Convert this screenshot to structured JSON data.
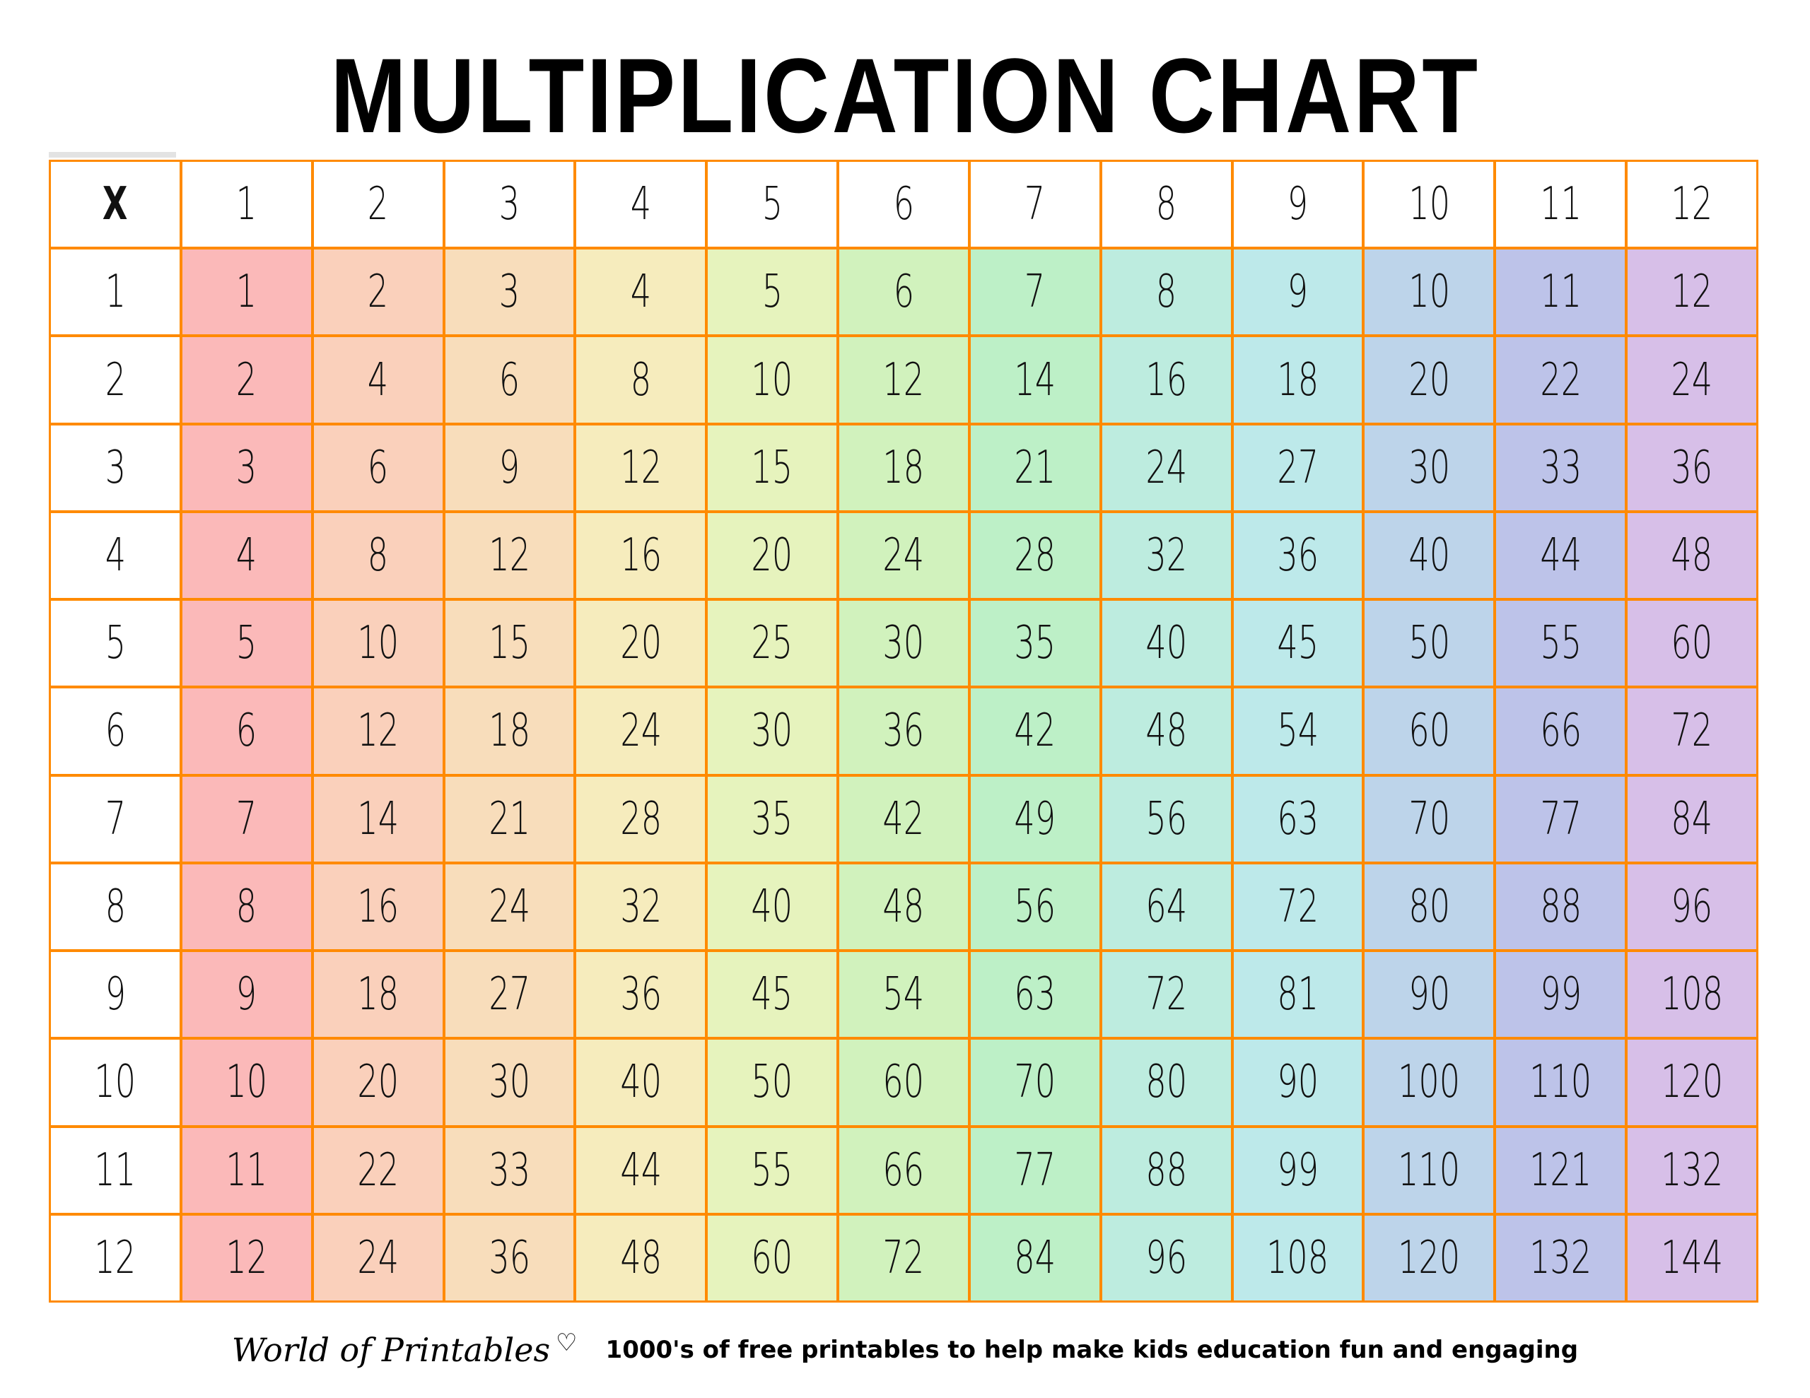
{
  "title": "MULTIPLICATION CHART",
  "header_corner": "X",
  "column_headers": [
    "1",
    "2",
    "3",
    "4",
    "5",
    "6",
    "7",
    "8",
    "9",
    "10",
    "11",
    "12"
  ],
  "row_headers": [
    "1",
    "2",
    "3",
    "4",
    "5",
    "6",
    "7",
    "8",
    "9",
    "10",
    "11",
    "12"
  ],
  "rows": [
    [
      1,
      2,
      3,
      4,
      5,
      6,
      7,
      8,
      9,
      10,
      11,
      12
    ],
    [
      2,
      4,
      6,
      8,
      10,
      12,
      14,
      16,
      18,
      20,
      22,
      24
    ],
    [
      3,
      6,
      9,
      12,
      15,
      18,
      21,
      24,
      27,
      30,
      33,
      36
    ],
    [
      4,
      8,
      12,
      16,
      20,
      24,
      28,
      32,
      36,
      40,
      44,
      48
    ],
    [
      5,
      10,
      15,
      20,
      25,
      30,
      35,
      40,
      45,
      50,
      55,
      60
    ],
    [
      6,
      12,
      18,
      24,
      30,
      36,
      42,
      48,
      54,
      60,
      66,
      72
    ],
    [
      7,
      14,
      21,
      28,
      35,
      42,
      49,
      56,
      63,
      70,
      77,
      84
    ],
    [
      8,
      16,
      24,
      32,
      40,
      48,
      56,
      64,
      72,
      80,
      88,
      96
    ],
    [
      9,
      18,
      27,
      36,
      45,
      54,
      63,
      72,
      81,
      90,
      99,
      108
    ],
    [
      10,
      20,
      30,
      40,
      50,
      60,
      70,
      80,
      90,
      100,
      110,
      120
    ],
    [
      11,
      22,
      33,
      44,
      55,
      66,
      77,
      88,
      99,
      110,
      121,
      132
    ],
    [
      12,
      24,
      36,
      48,
      60,
      72,
      84,
      96,
      108,
      120,
      132,
      144
    ]
  ],
  "colors": {
    "border": "#ff8a00",
    "columns": [
      "#fbb9b9",
      "#fad0bb",
      "#f8ddbb",
      "#f6ecbd",
      "#e6f3bd",
      "#d1f2bd",
      "#bdf0c7",
      "#bdecdf",
      "#bde9ea",
      "#bdd4ea",
      "#bdc3e9",
      "#d7bfe8"
    ]
  },
  "footer": {
    "logo": "World of Printables",
    "logo_icon": "heart-icon",
    "tagline": "1000's of free printables to help make kids education fun and engaging"
  }
}
